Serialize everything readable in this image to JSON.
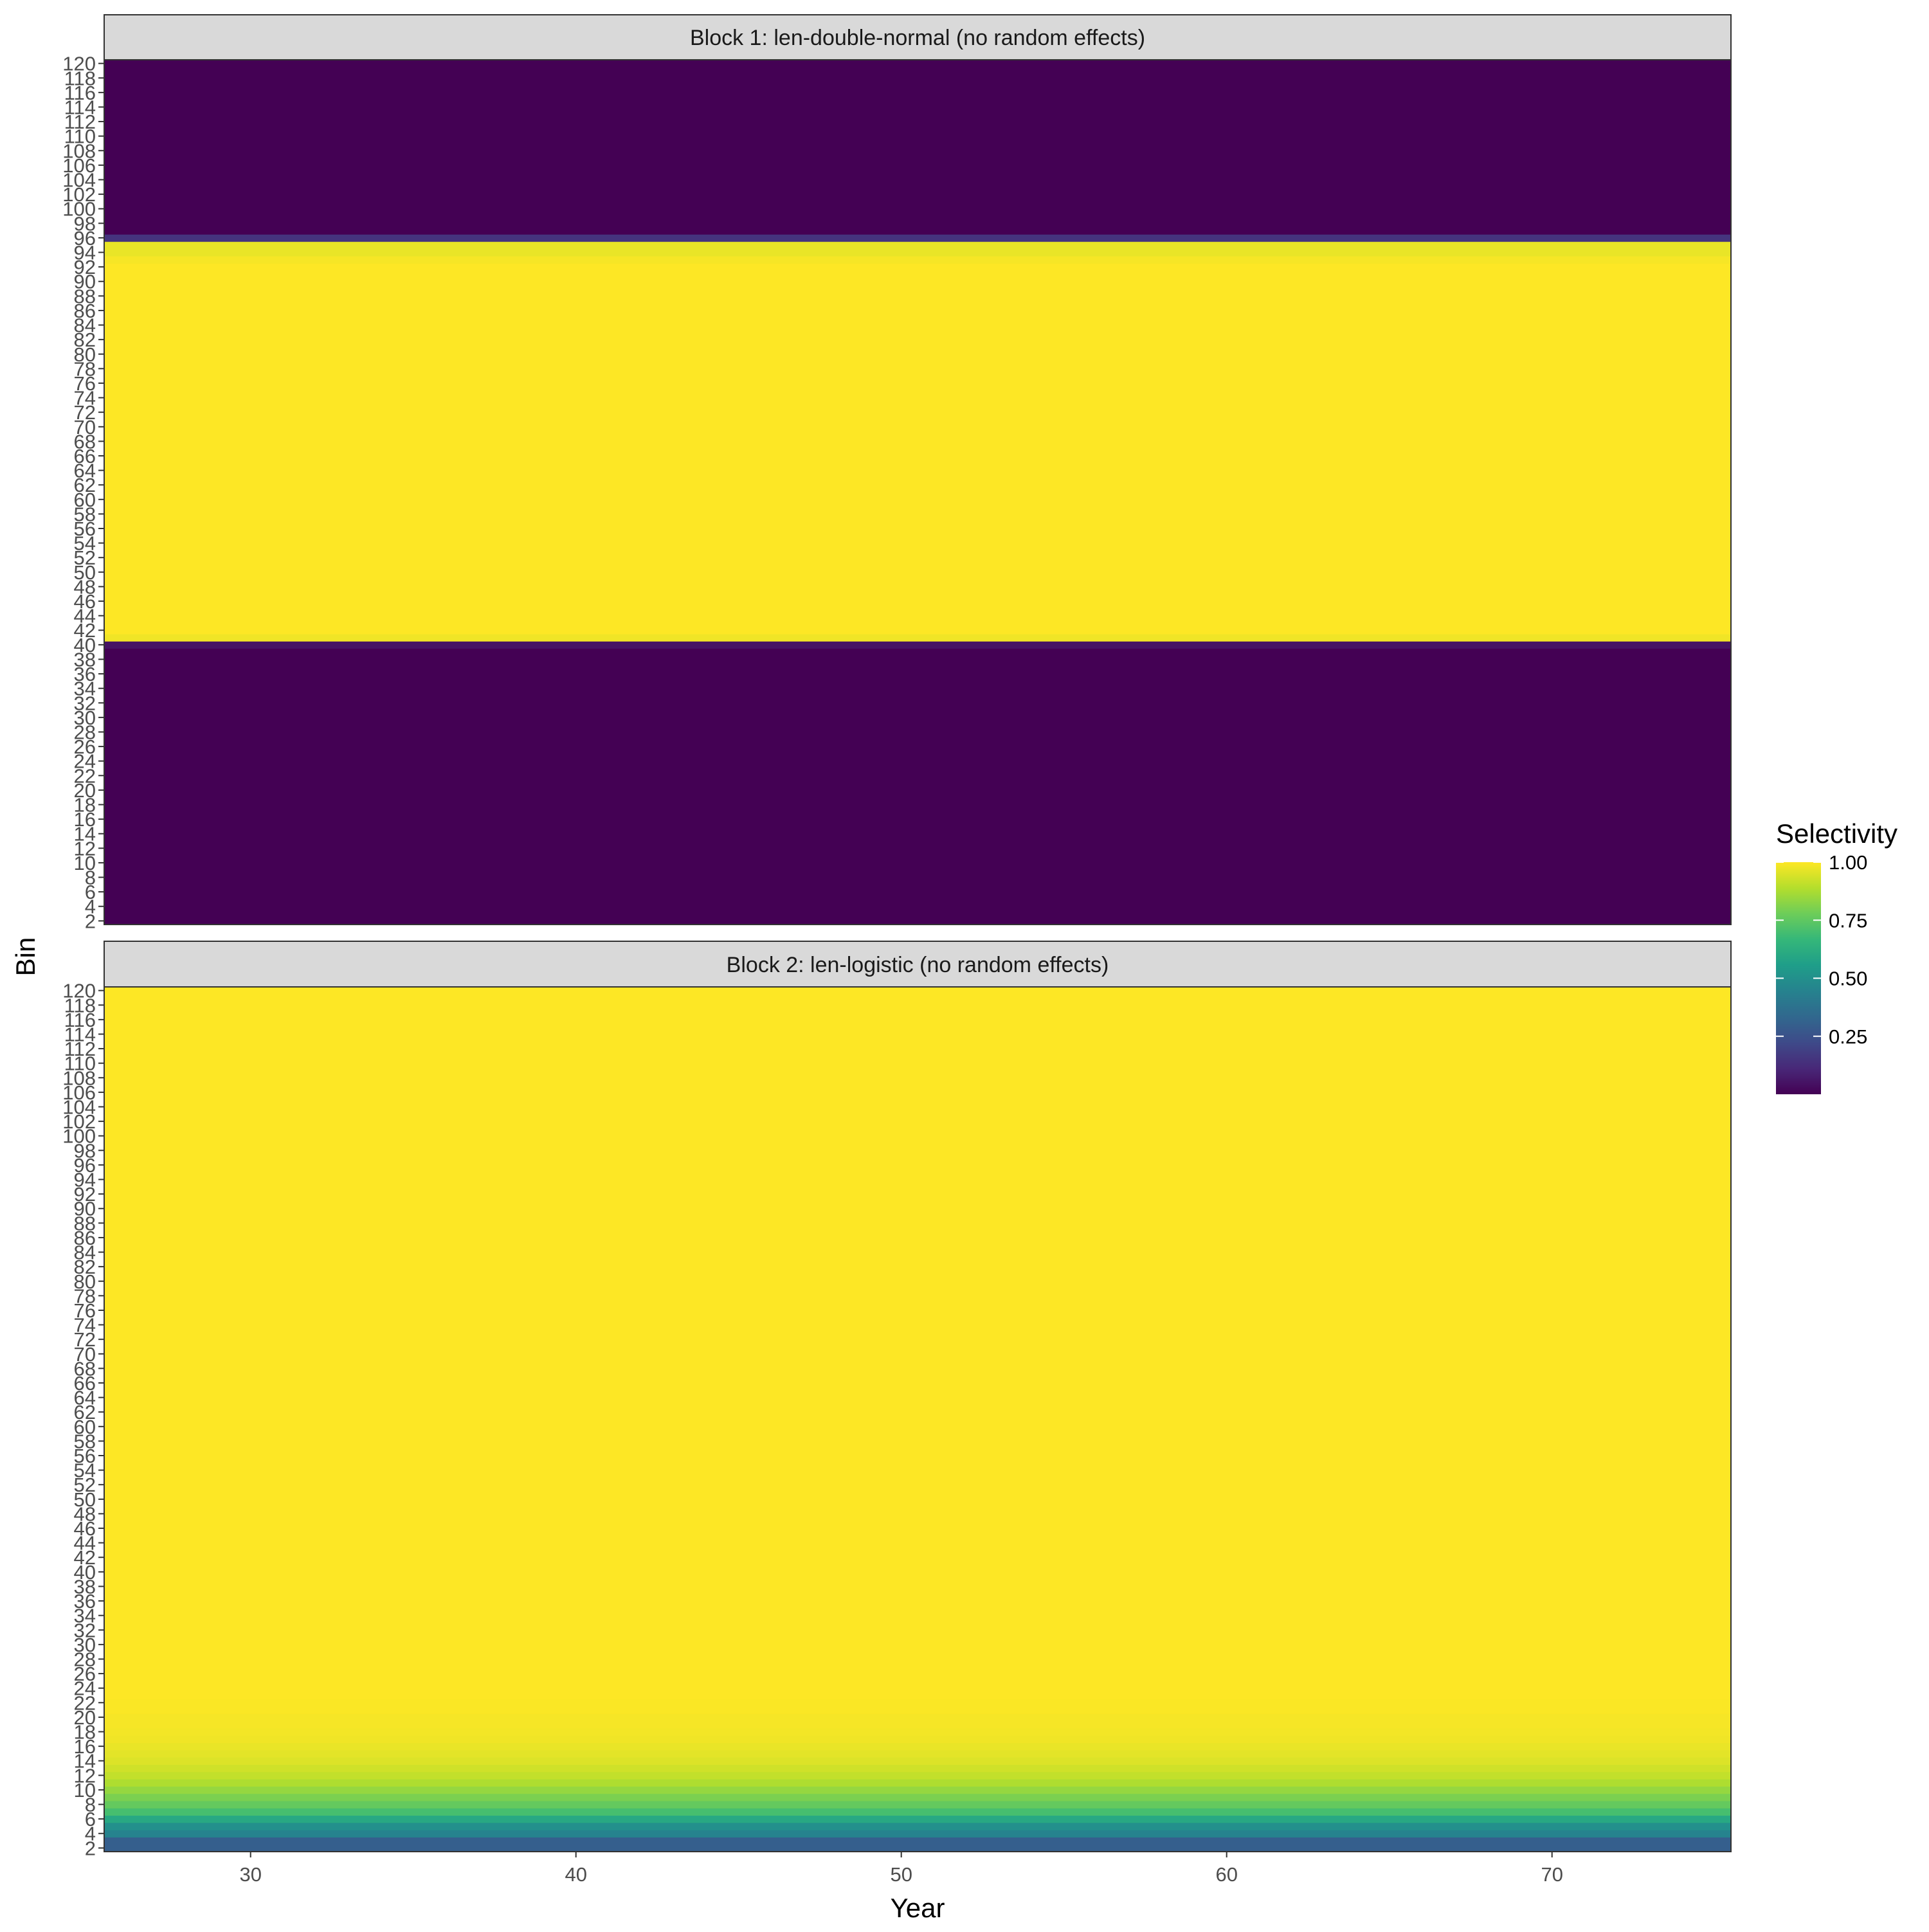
{
  "chart_data": {
    "type": "heatmap",
    "x_label": "Year",
    "y_label": "Bin",
    "x_range": [
      25.5,
      75.5
    ],
    "x_ticks": [
      30,
      40,
      50,
      60,
      70
    ],
    "y_bins": [
      2,
      3,
      4,
      5,
      6,
      7,
      8,
      9,
      10,
      11,
      12,
      13,
      14,
      15,
      16,
      17,
      18,
      19,
      20,
      21,
      22,
      23,
      24,
      25,
      26,
      27,
      28,
      29,
      30,
      31,
      32,
      33,
      34,
      35,
      36,
      37,
      38,
      39,
      40,
      41,
      42,
      43,
      44,
      45,
      46,
      47,
      48,
      49,
      50,
      51,
      52,
      53,
      54,
      55,
      56,
      57,
      58,
      59,
      60,
      61,
      62,
      63,
      64,
      65,
      66,
      67,
      68,
      69,
      70,
      71,
      72,
      73,
      74,
      75,
      76,
      77,
      78,
      79,
      80,
      81,
      82,
      83,
      84,
      85,
      86,
      87,
      88,
      89,
      90,
      91,
      92,
      93,
      94,
      95,
      96,
      97,
      98,
      99,
      100,
      101,
      102,
      103,
      104,
      105,
      106,
      107,
      108,
      109,
      110,
      111,
      112,
      113,
      114,
      115,
      116,
      117,
      118,
      119,
      120
    ],
    "y_tick_labels": [
      "2",
      "4",
      "6",
      "8",
      "10",
      "12",
      "14",
      "16",
      "18",
      "20",
      "22",
      "24",
      "26",
      "28",
      "30",
      "32",
      "34",
      "36",
      "38",
      "40",
      "42",
      "44",
      "46",
      "48",
      "50",
      "52",
      "54",
      "56",
      "58",
      "60",
      "62",
      "64",
      "66",
      "68",
      "70",
      "72",
      "74",
      "76",
      "78",
      "80",
      "82",
      "84",
      "86",
      "88",
      "90",
      "92",
      "94",
      "96",
      "98",
      "100",
      "102",
      "104",
      "106",
      "108",
      "110",
      "112",
      "114",
      "116",
      "118",
      "120"
    ],
    "panels": [
      {
        "title": "Block 1: len-double-normal (no random effects)",
        "selectivity_by_bin": [
          {
            "from": 2,
            "to": 39,
            "value": 0.0
          },
          {
            "from": 40,
            "to": 40,
            "value": 0.05
          },
          {
            "from": 41,
            "to": 41,
            "value": 0.98
          },
          {
            "from": 42,
            "to": 92,
            "value": 1.0
          },
          {
            "from": 93,
            "to": 93,
            "value": 0.99
          },
          {
            "from": 94,
            "to": 95,
            "value": 0.97
          },
          {
            "from": 96,
            "to": 96,
            "value": 0.15
          },
          {
            "from": 97,
            "to": 120,
            "value": 0.0
          }
        ]
      },
      {
        "title": "Block 2: len-logistic (no random effects)",
        "selectivity_by_bin": [
          {
            "from": 2,
            "to": 3,
            "value": 0.3
          },
          {
            "from": 4,
            "to": 4,
            "value": 0.45
          },
          {
            "from": 5,
            "to": 5,
            "value": 0.5
          },
          {
            "from": 6,
            "to": 6,
            "value": 0.6
          },
          {
            "from": 7,
            "to": 7,
            "value": 0.7
          },
          {
            "from": 8,
            "to": 8,
            "value": 0.76
          },
          {
            "from": 9,
            "to": 9,
            "value": 0.8
          },
          {
            "from": 10,
            "to": 10,
            "value": 0.84
          },
          {
            "from": 11,
            "to": 11,
            "value": 0.88
          },
          {
            "from": 12,
            "to": 12,
            "value": 0.91
          },
          {
            "from": 13,
            "to": 13,
            "value": 0.93
          },
          {
            "from": 14,
            "to": 14,
            "value": 0.95
          },
          {
            "from": 15,
            "to": 15,
            "value": 0.96
          },
          {
            "from": 16,
            "to": 16,
            "value": 0.97
          },
          {
            "from": 17,
            "to": 17,
            "value": 0.98
          },
          {
            "from": 18,
            "to": 18,
            "value": 0.985
          },
          {
            "from": 19,
            "to": 20,
            "value": 0.99
          },
          {
            "from": 21,
            "to": 22,
            "value": 0.995
          },
          {
            "from": 23,
            "to": 120,
            "value": 1.0
          }
        ]
      }
    ],
    "legend": {
      "title": "Selectivity",
      "position": "right",
      "ticks": [
        0.25,
        0.5,
        0.75,
        1.0
      ],
      "tick_labels": [
        "0.25",
        "0.50",
        "0.75",
        "1.00"
      ],
      "range": [
        0.0,
        1.0
      ],
      "colormap": "viridis",
      "colors": [
        "#440154",
        "#482878",
        "#3E4A89",
        "#31688E",
        "#26828E",
        "#1F9E89",
        "#35B779",
        "#6DCD59",
        "#B4DE2C",
        "#FDE725"
      ]
    },
    "grid": false,
    "panel_strip_color": "#D9D9D9"
  }
}
